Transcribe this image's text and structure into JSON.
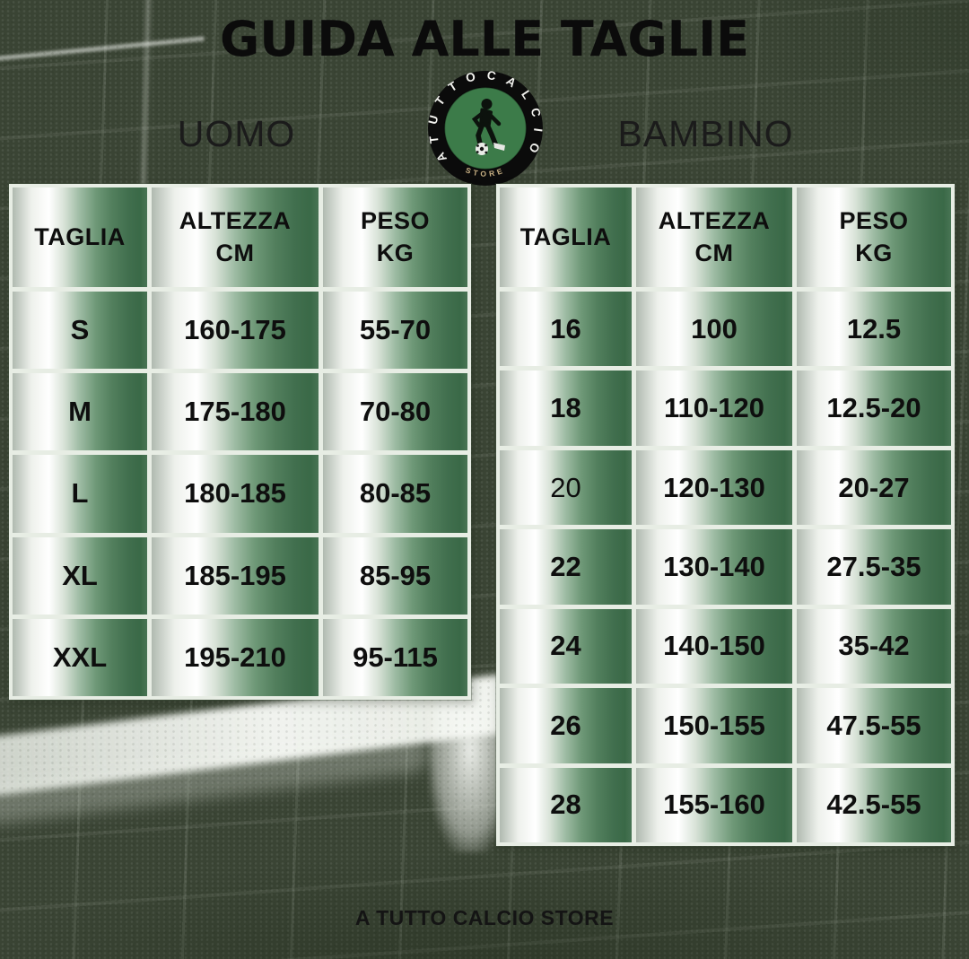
{
  "title": "GUIDA ALLE TAGLIE",
  "logo": {
    "ring_text": "ATUTTOCALCIO",
    "bottom_text": "STORE",
    "icon": "soccer-player-dribbling"
  },
  "footer": "A TUTTO CALCIO STORE",
  "tables": {
    "uomo": {
      "label": "UOMO",
      "headers": [
        {
          "l1": "TAGLIA",
          "l2": ""
        },
        {
          "l1": "ALTEZZA",
          "l2": "CM"
        },
        {
          "l1": "PESO",
          "l2": "KG"
        }
      ],
      "rows": [
        [
          "S",
          "160-175",
          "55-70"
        ],
        [
          "M",
          "175-180",
          "70-80"
        ],
        [
          "L",
          "180-185",
          "80-85"
        ],
        [
          "XL",
          "185-195",
          "85-95"
        ],
        [
          "XXL",
          "195-210",
          "95-115"
        ]
      ]
    },
    "bambino": {
      "label": "BAMBINO",
      "headers": [
        {
          "l1": "TAGLIA",
          "l2": ""
        },
        {
          "l1": "ALTEZZA",
          "l2": "CM"
        },
        {
          "l1": "PESO",
          "l2": "KG"
        }
      ],
      "rows": [
        [
          "16",
          "100",
          "12.5"
        ],
        [
          "18",
          "110-120",
          "12.5-20"
        ],
        [
          "20",
          "120-130",
          "20-27"
        ],
        [
          "22",
          "130-140",
          "27.5-35"
        ],
        [
          "24",
          "140-150",
          "35-42"
        ],
        [
          "26",
          "150-155",
          "47.5-55"
        ],
        [
          "28",
          "155-160",
          "42.5-55"
        ]
      ],
      "light_rows": [
        2
      ]
    }
  },
  "chart_data": [
    {
      "type": "table",
      "title": "UOMO",
      "columns": [
        "TAGLIA",
        "ALTEZZA CM",
        "PESO KG"
      ],
      "rows": [
        [
          "S",
          "160-175",
          "55-70"
        ],
        [
          "M",
          "175-180",
          "70-80"
        ],
        [
          "L",
          "180-185",
          "80-85"
        ],
        [
          "XL",
          "185-195",
          "85-95"
        ],
        [
          "XXL",
          "195-210",
          "95-115"
        ]
      ]
    },
    {
      "type": "table",
      "title": "BAMBINO",
      "columns": [
        "TAGLIA",
        "ALTEZZA CM",
        "PESO KG"
      ],
      "rows": [
        [
          "16",
          "100",
          "12.5"
        ],
        [
          "18",
          "110-120",
          "12.5-20"
        ],
        [
          "20",
          "120-130",
          "20-27"
        ],
        [
          "22",
          "130-140",
          "27.5-35"
        ],
        [
          "24",
          "140-150",
          "35-42"
        ],
        [
          "26",
          "150-155",
          "47.5-55"
        ],
        [
          "28",
          "155-160",
          "42.5-55"
        ]
      ]
    }
  ],
  "colors": {
    "cell_green_dark": "#3a6947",
    "cell_green_mid": "#6e9877",
    "cell_highlight": "#ffffff",
    "grid_border": "#e7ede4",
    "grass": "#75856c",
    "logo_ring": "#0b0b0b",
    "logo_green": "#3c7b49",
    "logo_store_gold": "#c9b184",
    "text": "#0e0e0e"
  }
}
